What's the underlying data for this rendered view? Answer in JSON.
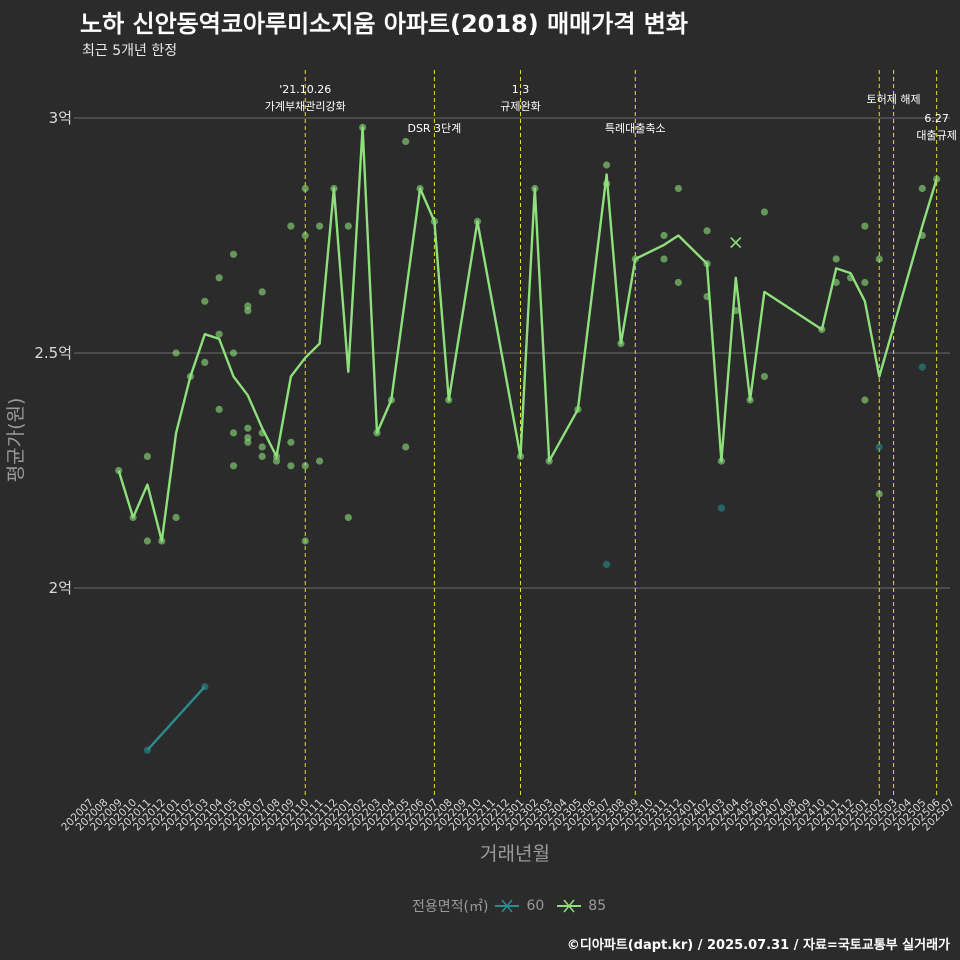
{
  "header": {
    "title": "노하 신안동역코아루미소지움 아파트(2018) 매매가격 변화",
    "subtitle": "최근 5개년 한정"
  },
  "caption": "©디아파트(dapt.kr) / 2025.07.31 / 자료=국토교통부 실거래가",
  "legend": {
    "title": "전용면적(㎡)",
    "items": [
      {
        "label": "60",
        "color": "#2a8c8c"
      },
      {
        "label": "85",
        "color": "#8ee07c"
      }
    ]
  },
  "colors": {
    "background": "#2b2b2b",
    "grid": "#6b6b6b",
    "event_line": "#e2e21a",
    "axis_text": "#d9d9d9",
    "axis_title": "#9a9a9a"
  },
  "chart_data": {
    "type": "line",
    "xlabel": "거래년월",
    "ylabel": "평균가(원)",
    "categories": [
      "202007",
      "202008",
      "202009",
      "202010",
      "202011",
      "202012",
      "202101",
      "202102",
      "202103",
      "202104",
      "202105",
      "202106",
      "202107",
      "202108",
      "202109",
      "202110",
      "202111",
      "202112",
      "202201",
      "202202",
      "202203",
      "202204",
      "202205",
      "202206",
      "202207",
      "202208",
      "202209",
      "202210",
      "202211",
      "202212",
      "202301",
      "202302",
      "202303",
      "202304",
      "202305",
      "202306",
      "202307",
      "202308",
      "202309",
      "202310",
      "202311",
      "202312",
      "202401",
      "202402",
      "202403",
      "202404",
      "202405",
      "202406",
      "202407",
      "202408",
      "202409",
      "202410",
      "202411",
      "202412",
      "202501",
      "202502",
      "202503",
      "202504",
      "202505",
      "202506",
      "202507"
    ],
    "y_ticks": [
      {
        "value": 2.0,
        "label": "2억"
      },
      {
        "value": 2.5,
        "label": "2.5억"
      },
      {
        "value": 3.0,
        "label": "3억"
      }
    ],
    "ylim": [
      1.58,
      3.1
    ],
    "grid": true,
    "series": [
      {
        "name": "60",
        "color": "#2a8c8c",
        "line": [
          [
            "202011",
            1.655
          ],
          [
            "202103",
            1.79
          ]
        ],
        "points": [
          [
            "202011",
            1.655
          ],
          [
            "202103",
            1.79
          ],
          [
            "202307",
            2.05
          ],
          [
            "202403",
            2.17
          ],
          [
            "202502",
            2.3
          ],
          [
            "202505",
            2.47
          ]
        ]
      },
      {
        "name": "85",
        "color": "#8ee07c",
        "line": [
          [
            "202009",
            2.25
          ],
          [
            "202010",
            2.15
          ],
          [
            "202011",
            2.22
          ],
          [
            "202012",
            2.1
          ],
          [
            "202101",
            2.33
          ],
          [
            "202102",
            2.45
          ],
          [
            "202103",
            2.54
          ],
          [
            "202104",
            2.53
          ],
          [
            "202105",
            2.45
          ],
          [
            "202106",
            2.41
          ],
          [
            "202107",
            2.34
          ],
          [
            "202108",
            2.28
          ],
          [
            "202109",
            2.45
          ],
          [
            "202110",
            2.49
          ],
          [
            "202111",
            2.52
          ],
          [
            "202112",
            2.85
          ],
          [
            "202201",
            2.46
          ],
          [
            "202202",
            2.98
          ],
          [
            "202203",
            2.33
          ],
          [
            "202204",
            2.4
          ],
          [
            "202206",
            2.85
          ],
          [
            "202207",
            2.78
          ],
          [
            "202208",
            2.4
          ],
          [
            "202210",
            2.78
          ],
          [
            "202301",
            2.28
          ],
          [
            "202302",
            2.85
          ],
          [
            "202303",
            2.27
          ],
          [
            "202305",
            2.38
          ],
          [
            "202307",
            2.88
          ],
          [
            "202308",
            2.52
          ],
          [
            "202309",
            2.7
          ],
          [
            "202311",
            2.73
          ],
          [
            "202312",
            2.75
          ],
          [
            "202402",
            2.69
          ],
          [
            "202403",
            2.27
          ],
          [
            "202404",
            2.66
          ],
          [
            "202405",
            2.4
          ],
          [
            "202406",
            2.63
          ],
          [
            "202410",
            2.55
          ],
          [
            "202411",
            2.68
          ],
          [
            "202412",
            2.67
          ],
          [
            "202501",
            2.61
          ],
          [
            "202502",
            2.45
          ],
          [
            "202505",
            2.77
          ],
          [
            "202506",
            2.87
          ]
        ],
        "points": [
          [
            "202009",
            2.25
          ],
          [
            "202010",
            2.15
          ],
          [
            "202011",
            2.1
          ],
          [
            "202011",
            2.28
          ],
          [
            "202012",
            2.1
          ],
          [
            "202101",
            2.5
          ],
          [
            "202101",
            2.15
          ],
          [
            "202102",
            2.45
          ],
          [
            "202103",
            2.61
          ],
          [
            "202103",
            2.48
          ],
          [
            "202104",
            2.66
          ],
          [
            "202104",
            2.54
          ],
          [
            "202104",
            2.38
          ],
          [
            "202105",
            2.71
          ],
          [
            "202105",
            2.5
          ],
          [
            "202105",
            2.33
          ],
          [
            "202105",
            2.26
          ],
          [
            "202106",
            2.6
          ],
          [
            "202106",
            2.59
          ],
          [
            "202106",
            2.34
          ],
          [
            "202106",
            2.32
          ],
          [
            "202106",
            2.31
          ],
          [
            "202107",
            2.63
          ],
          [
            "202107",
            2.33
          ],
          [
            "202107",
            2.3
          ],
          [
            "202107",
            2.28
          ],
          [
            "202108",
            2.28
          ],
          [
            "202108",
            2.27
          ],
          [
            "202109",
            2.77
          ],
          [
            "202109",
            2.31
          ],
          [
            "202109",
            2.26
          ],
          [
            "202110",
            2.85
          ],
          [
            "202110",
            2.75
          ],
          [
            "202110",
            2.26
          ],
          [
            "202110",
            2.1
          ],
          [
            "202111",
            2.77
          ],
          [
            "202111",
            2.27
          ],
          [
            "202112",
            2.85
          ],
          [
            "202201",
            2.77
          ],
          [
            "202201",
            2.15
          ],
          [
            "202202",
            2.98
          ],
          [
            "202203",
            2.33
          ],
          [
            "202204",
            2.4
          ],
          [
            "202205",
            2.95
          ],
          [
            "202205",
            2.3
          ],
          [
            "202206",
            2.85
          ],
          [
            "202207",
            2.78
          ],
          [
            "202208",
            2.4
          ],
          [
            "202210",
            2.78
          ],
          [
            "202301",
            2.28
          ],
          [
            "202302",
            2.85
          ],
          [
            "202303",
            2.27
          ],
          [
            "202305",
            2.38
          ],
          [
            "202307",
            2.9
          ],
          [
            "202307",
            2.86
          ],
          [
            "202308",
            2.52
          ],
          [
            "202309",
            2.7
          ],
          [
            "202311",
            2.75
          ],
          [
            "202311",
            2.7
          ],
          [
            "202312",
            2.85
          ],
          [
            "202312",
            2.65
          ],
          [
            "202402",
            2.76
          ],
          [
            "202402",
            2.69
          ],
          [
            "202402",
            2.62
          ],
          [
            "202403",
            2.27
          ],
          [
            "202404",
            2.59
          ],
          [
            "202405",
            2.4
          ],
          [
            "202406",
            2.8
          ],
          [
            "202406",
            2.45
          ],
          [
            "202410",
            2.55
          ],
          [
            "202411",
            2.7
          ],
          [
            "202411",
            2.65
          ],
          [
            "202412",
            2.66
          ],
          [
            "202501",
            2.77
          ],
          [
            "202501",
            2.65
          ],
          [
            "202501",
            2.4
          ],
          [
            "202502",
            2.7
          ],
          [
            "202502",
            2.2
          ],
          [
            "202505",
            2.85
          ],
          [
            "202505",
            2.75
          ],
          [
            "202506",
            2.87
          ]
        ],
        "cross_points": [
          [
            "202404",
            2.735
          ]
        ]
      }
    ],
    "events": [
      {
        "x": "202110",
        "lines": [
          "'21.10.26",
          "가계부채관리강화"
        ],
        "row": 1
      },
      {
        "x": "202207",
        "lines": [
          "DSR 3단계"
        ],
        "row": 3
      },
      {
        "x": "202301",
        "lines": [
          "1.3",
          "규제완화"
        ],
        "row": 1
      },
      {
        "x": "202309",
        "lines": [
          "특례대출축소"
        ],
        "row": 3
      },
      {
        "x": "202502",
        "lines": [],
        "row": 2
      },
      {
        "x": "202503",
        "lines": [
          "토허제 해제"
        ],
        "row": 2
      },
      {
        "x": "202506",
        "lines": [
          "6.27",
          "대출규제"
        ],
        "row": 2.5
      }
    ]
  }
}
